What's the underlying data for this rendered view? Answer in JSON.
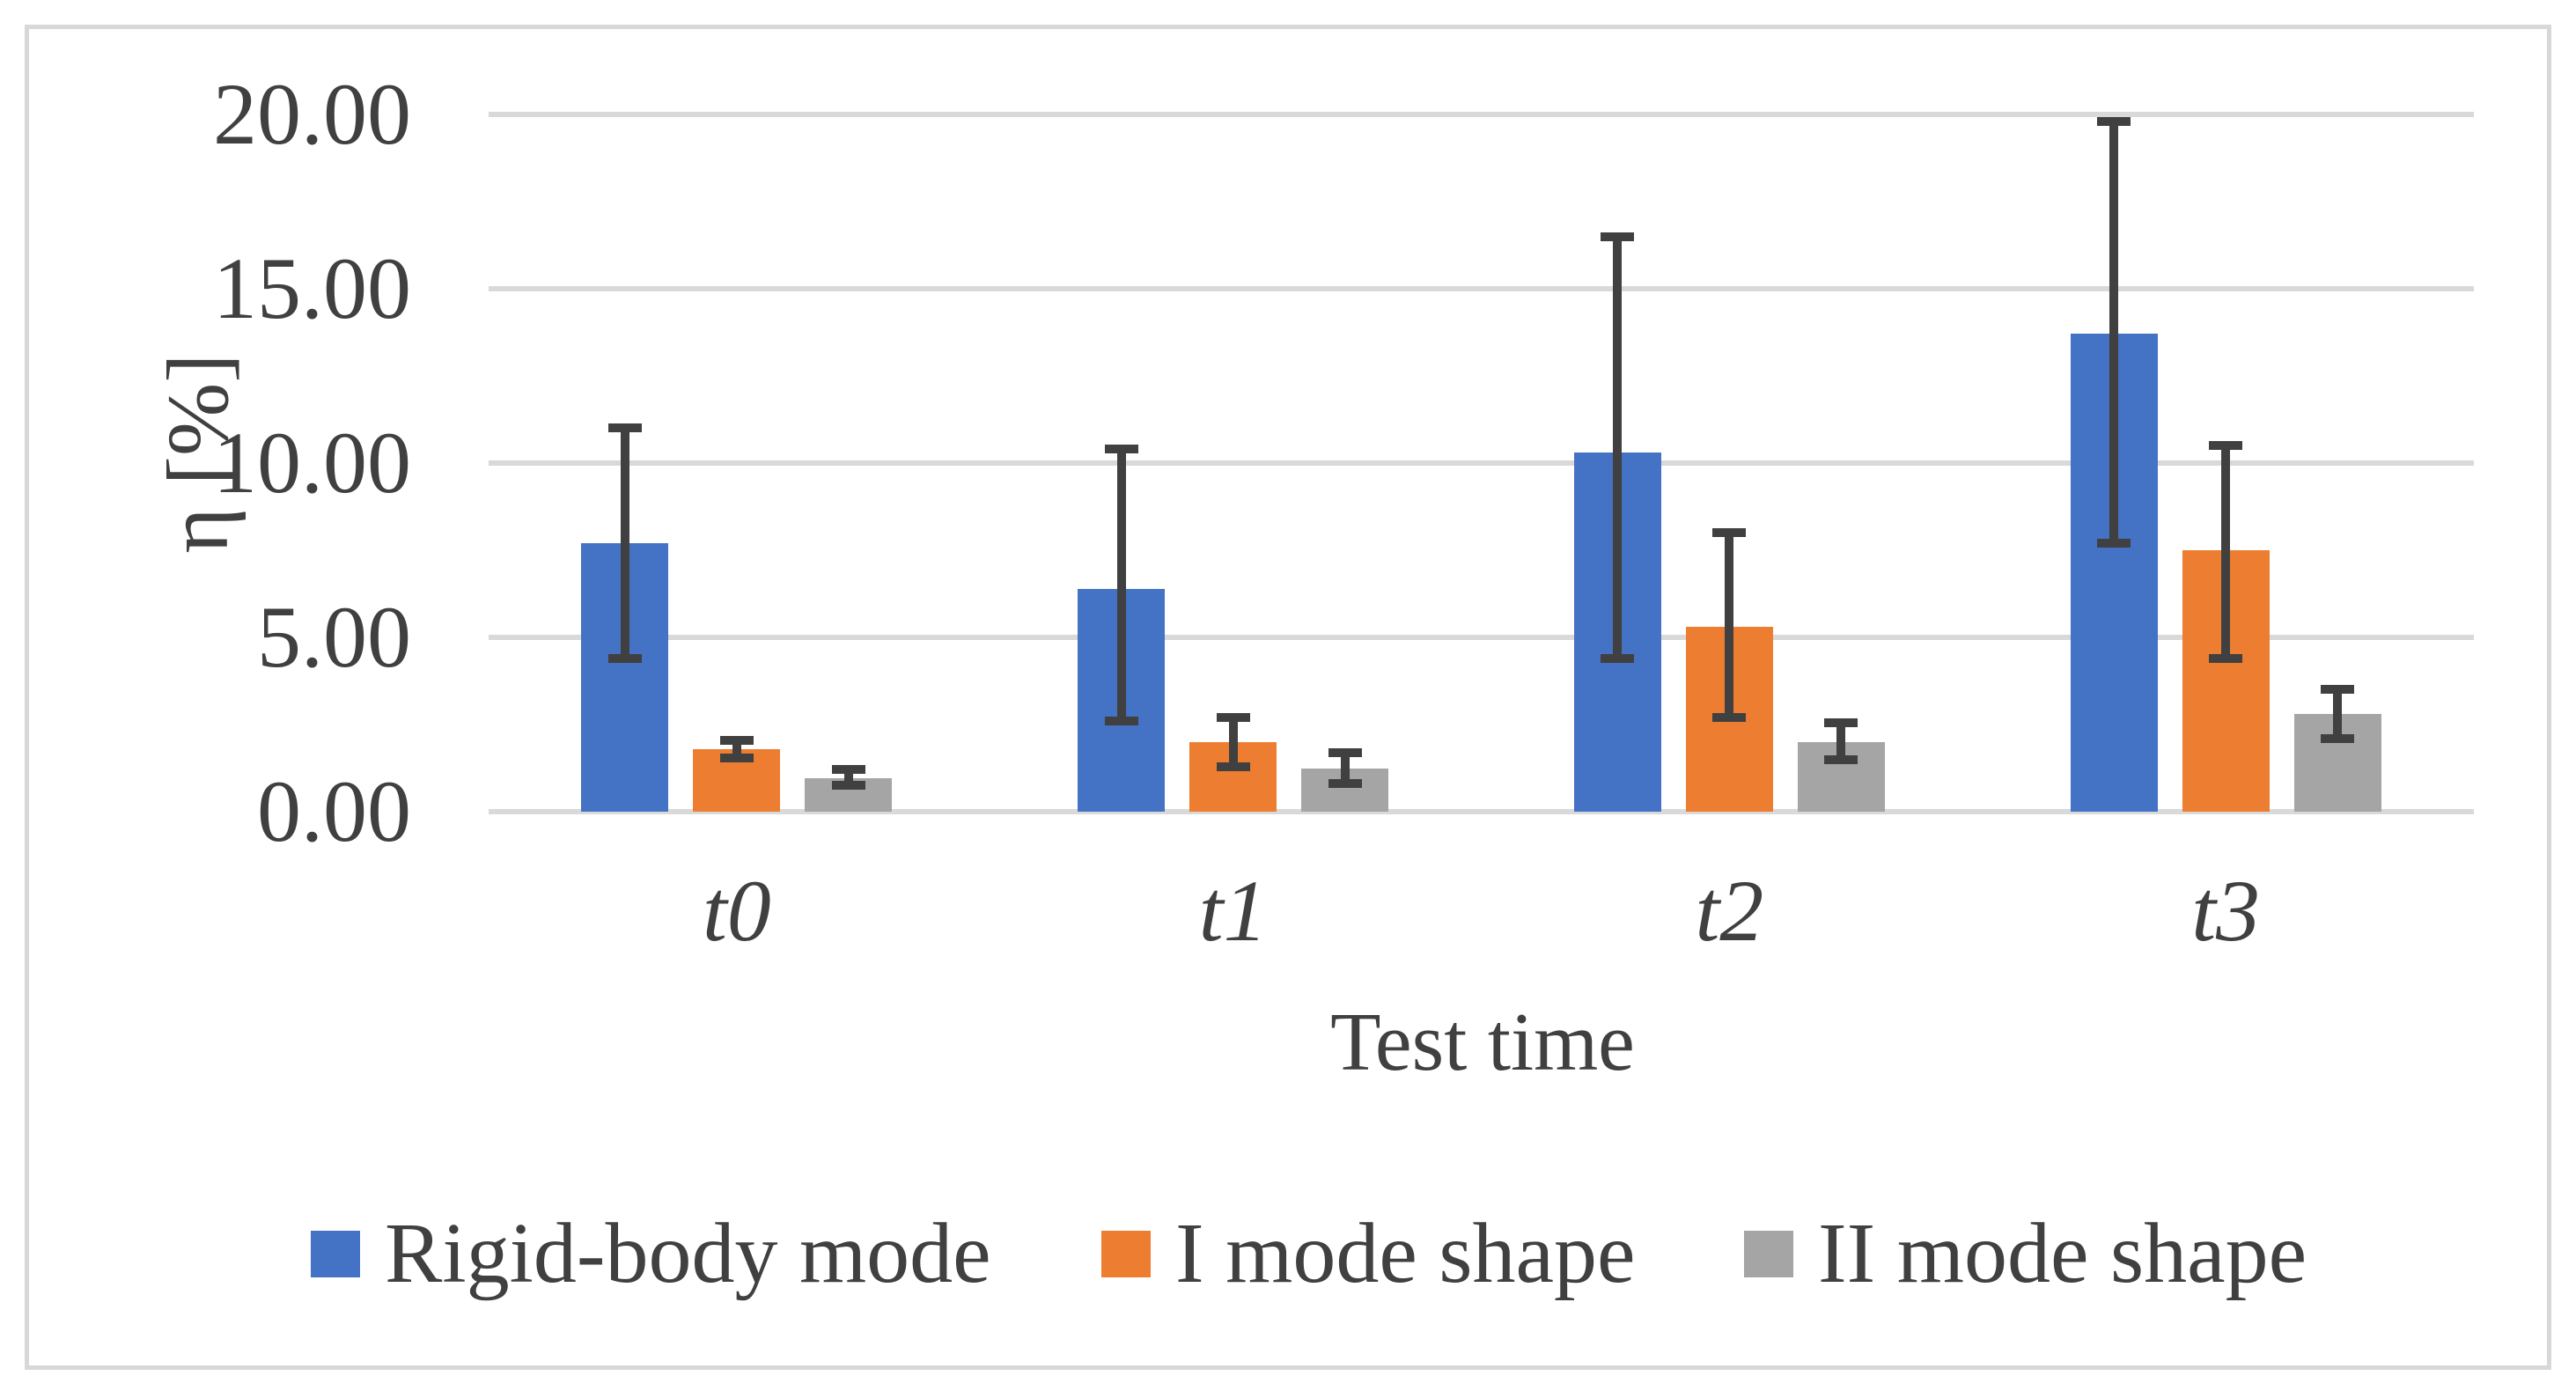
{
  "chart_data": {
    "type": "bar",
    "title": "",
    "xlabel": "Test time",
    "ylabel": "η [%]",
    "ylim": [
      0,
      20
    ],
    "ytick_labels": [
      "0.00",
      "5.00",
      "10.00",
      "15.00",
      "20.00"
    ],
    "ytick_values": [
      0,
      5,
      10,
      15,
      20
    ],
    "grid": true,
    "legend_position": "bottom",
    "categories": [
      "t0",
      "t1",
      "t2",
      "t3"
    ],
    "series": [
      {
        "name": "Rigid-body mode",
        "color": "#4472C4",
        "values": [
          7.7,
          6.4,
          10.3,
          13.7
        ],
        "error_lower": [
          4.4,
          2.6,
          4.4,
          7.7
        ],
        "error_upper": [
          11.0,
          10.4,
          16.5,
          19.8
        ]
      },
      {
        "name": "I mode shape",
        "color": "#ED7D31",
        "values": [
          1.8,
          2.0,
          5.3,
          7.5
        ],
        "error_lower": [
          1.55,
          1.3,
          2.7,
          4.4
        ],
        "error_upper": [
          2.05,
          2.7,
          8.0,
          10.5
        ]
      },
      {
        "name": "II mode shape",
        "color": "#A5A5A5",
        "values": [
          0.95,
          1.25,
          2.0,
          2.8
        ],
        "error_lower": [
          0.75,
          0.8,
          1.5,
          2.1
        ],
        "error_upper": [
          1.2,
          1.7,
          2.55,
          3.5
        ]
      }
    ],
    "error_bar_color": "#404040",
    "gridline_color": "#D9D9D9",
    "text_color": "#404040"
  }
}
